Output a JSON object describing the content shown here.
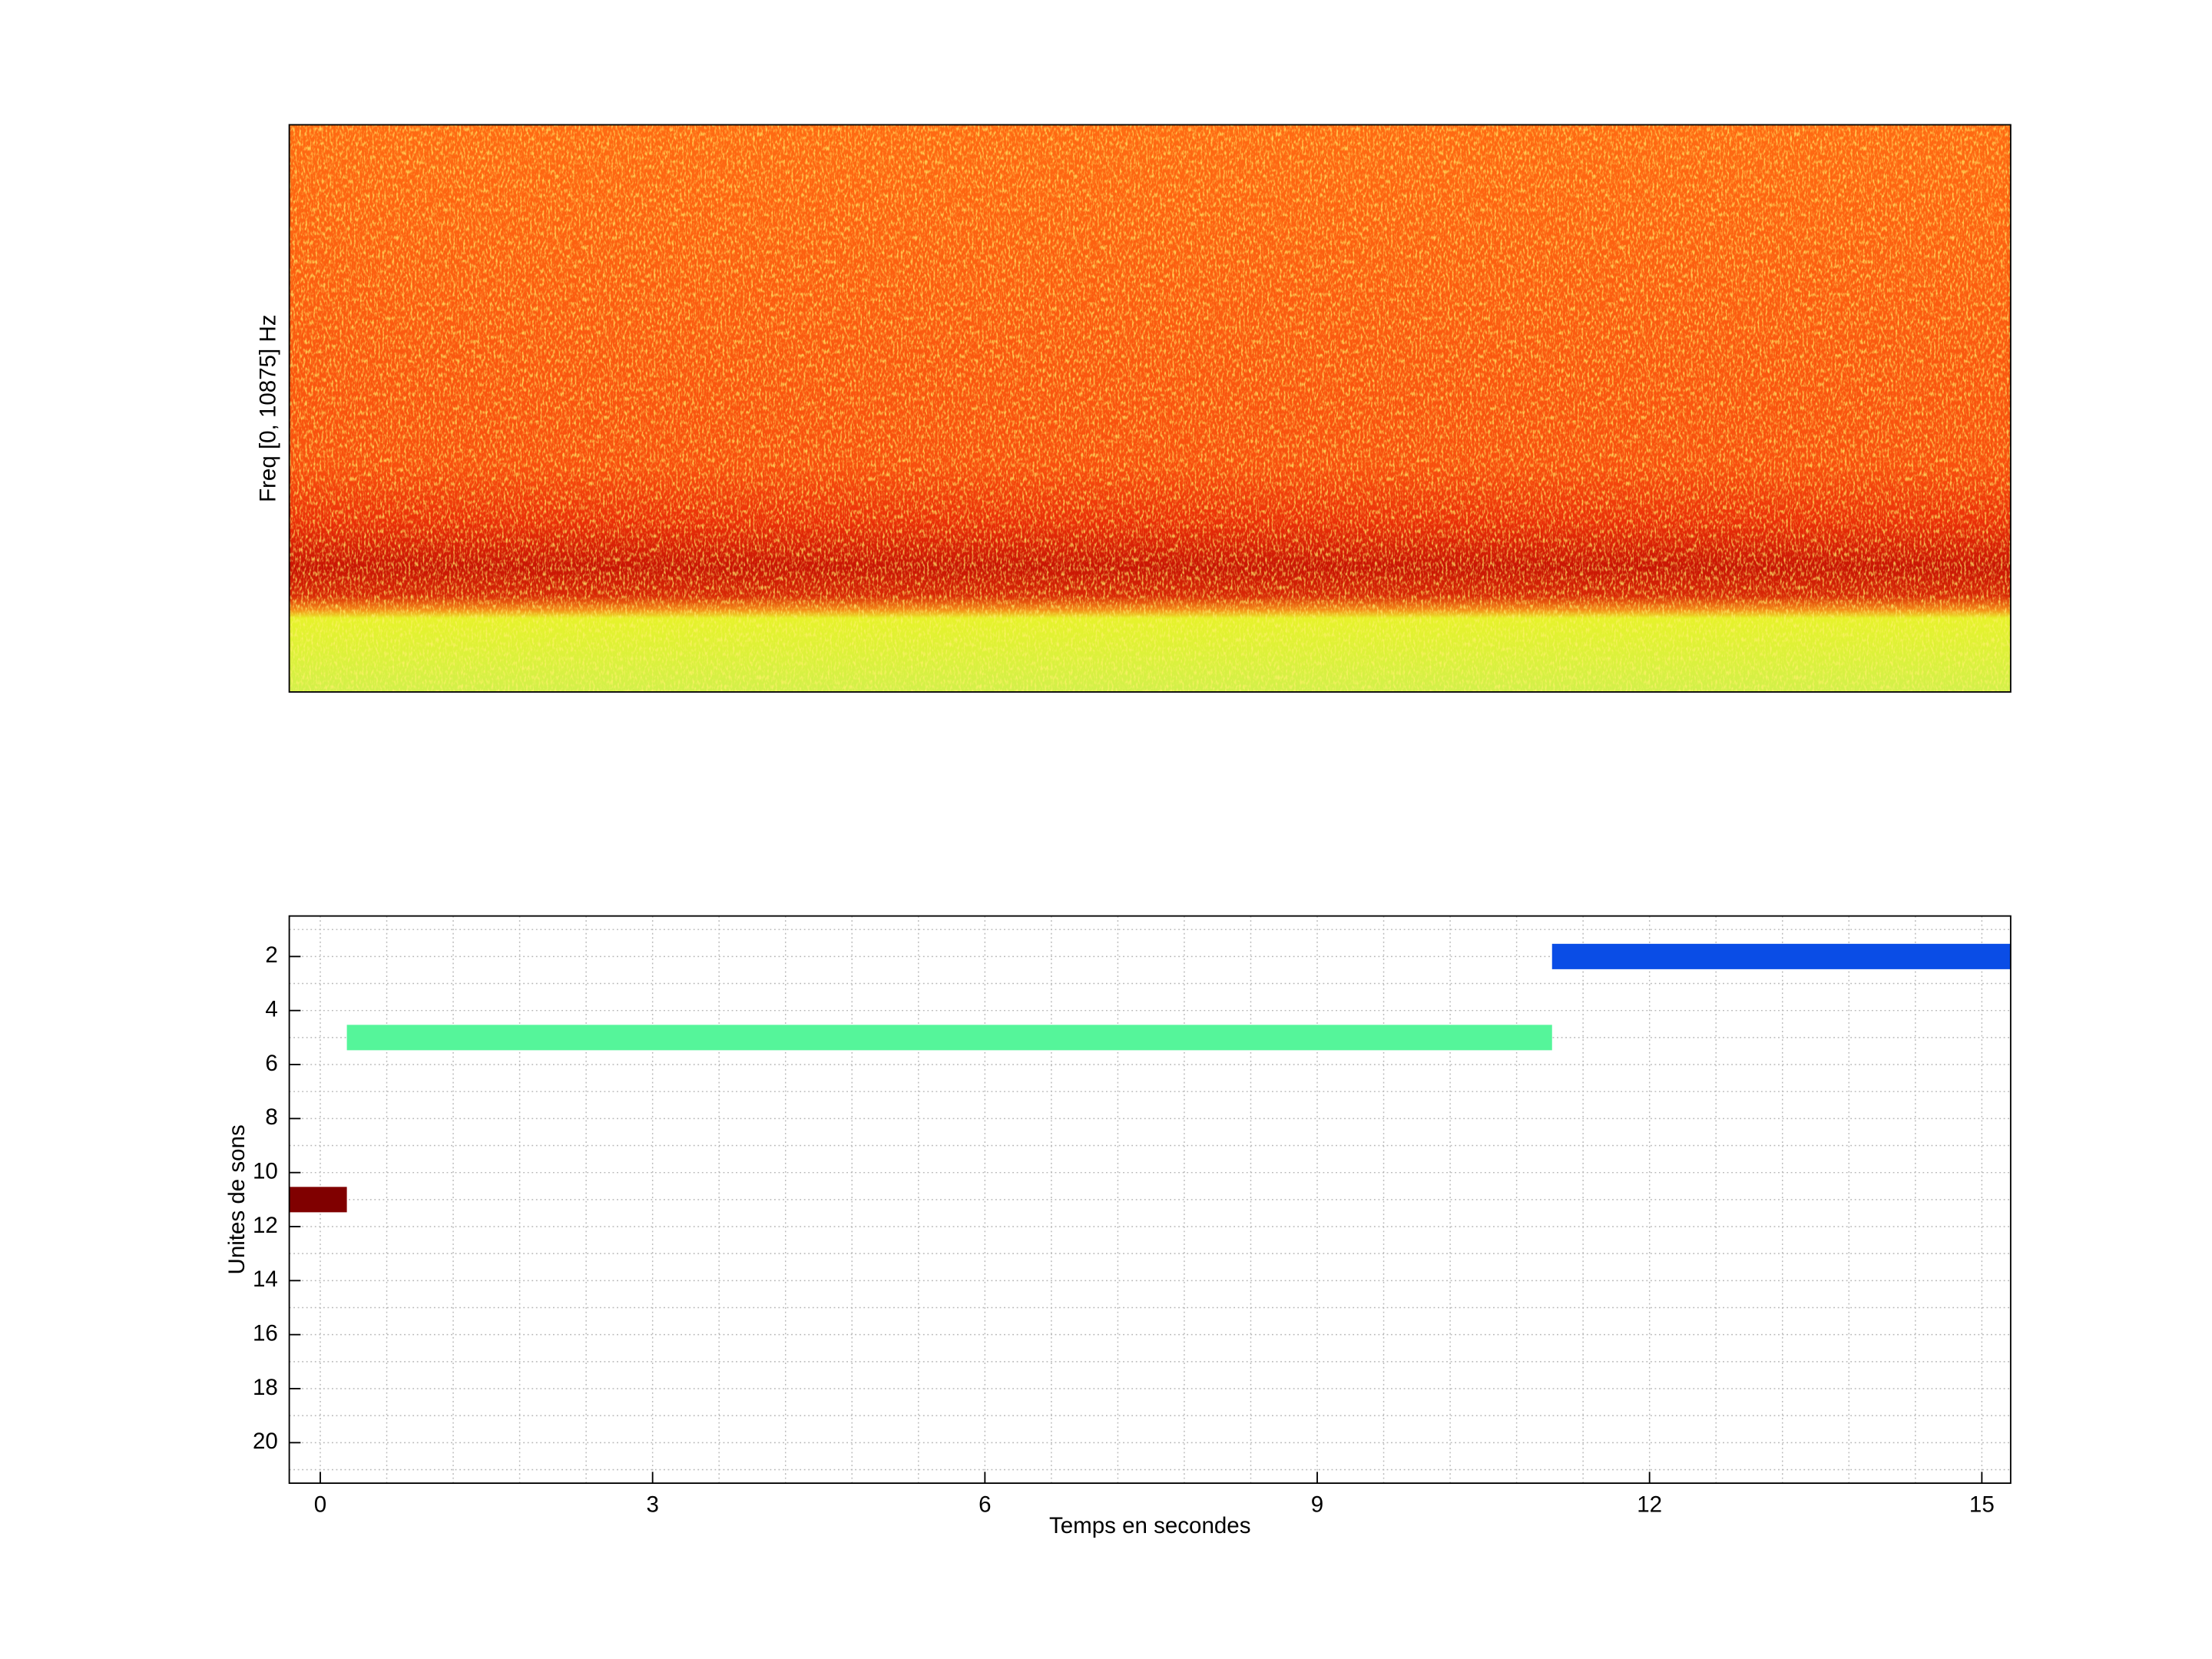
{
  "chart_data": [
    {
      "type": "spectrogram",
      "ylabel": "Freq [0, 10875] Hz"
    },
    {
      "type": "timeline",
      "xlabel": "Temps en secondes",
      "ylabel": "Unites de sons",
      "xlim": [
        -0.28,
        15.26
      ],
      "ylim": [
        21.5,
        0.5
      ],
      "xticks": [
        0,
        3,
        6,
        9,
        12,
        15
      ],
      "yticks": [
        2,
        4,
        6,
        8,
        10,
        12,
        14,
        16,
        18,
        20
      ],
      "xminorticks": [
        0.6,
        1.2,
        1.8,
        2.4,
        3.6,
        4.2,
        4.8,
        5.4,
        6.6,
        7.2,
        7.8,
        8.4,
        9.6,
        10.2,
        10.8,
        11.4,
        12.6,
        13.2,
        13.8,
        14.4
      ],
      "yminorticks": [
        1,
        3,
        5,
        7,
        9,
        11,
        13,
        15,
        17,
        19,
        21
      ],
      "grid": true,
      "segments": [
        {
          "unit": 11,
          "start": -0.28,
          "end": 0.24,
          "color": "#800000"
        },
        {
          "unit": 5,
          "start": 0.24,
          "end": 11.12,
          "color": "#55f59a"
        },
        {
          "unit": 2,
          "start": 11.12,
          "end": 15.26,
          "color": "#0a4de6"
        }
      ]
    }
  ]
}
